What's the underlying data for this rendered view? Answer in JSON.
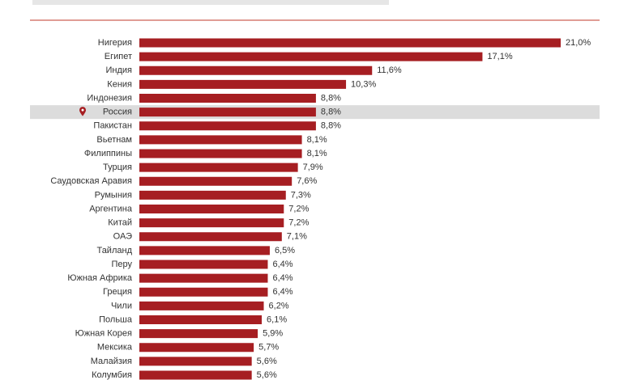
{
  "chart_data": {
    "type": "bar",
    "orientation": "horizontal",
    "categories": [
      "Нигерия",
      "Египет",
      "Индия",
      "Кения",
      "Индонезия",
      "Россия",
      "Пакистан",
      "Вьетнам",
      "Филиппины",
      "Турция",
      "Саудовская Аравия",
      "Румыния",
      "Аргентина",
      "Китай",
      "ОАЭ",
      "Тайланд",
      "Перу",
      "Южная Африка",
      "Греция",
      "Чили",
      "Польша",
      "Южная Корея",
      "Мексика",
      "Малайзия",
      "Колумбия"
    ],
    "values": [
      21.0,
      17.1,
      11.6,
      10.3,
      8.8,
      8.8,
      8.8,
      8.1,
      8.1,
      7.9,
      7.6,
      7.3,
      7.2,
      7.2,
      7.1,
      6.5,
      6.4,
      6.4,
      6.4,
      6.2,
      6.1,
      5.9,
      5.7,
      5.6,
      5.6
    ],
    "value_labels": [
      "21,0%",
      "17,1%",
      "11,6%",
      "10,3%",
      "8,8%",
      "8,8%",
      "8,8%",
      "8,1%",
      "8,1%",
      "7,9%",
      "7,6%",
      "7,3%",
      "7,2%",
      "7,2%",
      "7,1%",
      "6,5%",
      "6,4%",
      "6,4%",
      "6,4%",
      "6,2%",
      "6,1%",
      "5,9%",
      "5,7%",
      "5,6%",
      "5,6%"
    ],
    "color": "#a61e22",
    "highlight": "Россия"
  }
}
